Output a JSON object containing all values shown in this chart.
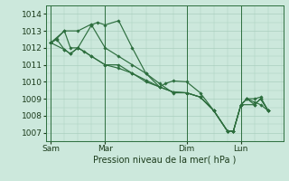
{
  "xlabel": "Pression niveau de la mer( hPa )",
  "background_color": "#cce8dc",
  "grid_color": "#aacfbe",
  "line_color": "#2d6e3e",
  "ylim": [
    1006.5,
    1014.5
  ],
  "yticks": [
    1007,
    1008,
    1009,
    1010,
    1011,
    1012,
    1013,
    1014
  ],
  "day_labels": [
    "Sam",
    "Mar",
    "Dim",
    "Lun"
  ],
  "day_positions": [
    0,
    36,
    90,
    126
  ],
  "xlim": [
    -3,
    154
  ],
  "vline_positions": [
    0,
    36,
    90,
    126
  ],
  "lines": [
    [
      [
        0,
        1012.3
      ],
      [
        4,
        1012.55
      ],
      [
        9,
        1013.0
      ],
      [
        18,
        1013.0
      ],
      [
        27,
        1013.4
      ],
      [
        27,
        1013.35
      ],
      [
        36,
        1012.0
      ],
      [
        45,
        1011.5
      ],
      [
        54,
        1011.0
      ],
      [
        63,
        1010.5
      ],
      [
        72,
        1009.9
      ],
      [
        81,
        1009.35
      ],
      [
        90,
        1009.35
      ],
      [
        99,
        1009.1
      ],
      [
        108,
        1008.3
      ],
      [
        117,
        1007.1
      ],
      [
        121,
        1007.1
      ],
      [
        126,
        1008.65
      ],
      [
        130,
        1009.0
      ],
      [
        135,
        1008.8
      ],
      [
        139,
        1008.65
      ],
      [
        144,
        1008.3
      ]
    ],
    [
      [
        0,
        1012.3
      ],
      [
        4,
        1012.5
      ],
      [
        9,
        1011.9
      ],
      [
        13,
        1011.65
      ],
      [
        18,
        1012.0
      ],
      [
        27,
        1013.35
      ],
      [
        31,
        1013.5
      ],
      [
        36,
        1013.35
      ],
      [
        45,
        1013.6
      ],
      [
        54,
        1012.0
      ],
      [
        63,
        1010.5
      ],
      [
        72,
        1009.7
      ],
      [
        76,
        1009.9
      ],
      [
        81,
        1010.05
      ],
      [
        90,
        1010.0
      ],
      [
        99,
        1009.35
      ],
      [
        108,
        1008.3
      ],
      [
        117,
        1007.1
      ],
      [
        121,
        1007.1
      ],
      [
        126,
        1008.65
      ],
      [
        130,
        1009.0
      ],
      [
        135,
        1009.0
      ],
      [
        139,
        1009.1
      ],
      [
        144,
        1008.3
      ]
    ],
    [
      [
        0,
        1012.3
      ],
      [
        9,
        1011.9
      ],
      [
        13,
        1011.65
      ],
      [
        18,
        1012.0
      ],
      [
        22,
        1011.8
      ],
      [
        27,
        1011.5
      ],
      [
        36,
        1011.0
      ],
      [
        45,
        1010.8
      ],
      [
        54,
        1010.5
      ],
      [
        63,
        1010.1
      ],
      [
        72,
        1009.7
      ],
      [
        81,
        1009.4
      ],
      [
        90,
        1009.35
      ],
      [
        99,
        1009.1
      ],
      [
        108,
        1008.3
      ],
      [
        117,
        1007.1
      ],
      [
        121,
        1007.1
      ],
      [
        126,
        1008.65
      ],
      [
        130,
        1009.0
      ],
      [
        135,
        1008.65
      ],
      [
        139,
        1009.0
      ],
      [
        144,
        1008.3
      ]
    ],
    [
      [
        0,
        1012.3
      ],
      [
        9,
        1013.0
      ],
      [
        13,
        1012.0
      ],
      [
        18,
        1012.0
      ],
      [
        27,
        1011.5
      ],
      [
        36,
        1011.0
      ],
      [
        45,
        1011.0
      ],
      [
        54,
        1010.5
      ],
      [
        63,
        1010.0
      ],
      [
        72,
        1009.7
      ],
      [
        81,
        1009.4
      ],
      [
        90,
        1009.35
      ],
      [
        99,
        1009.1
      ],
      [
        108,
        1008.3
      ],
      [
        117,
        1007.1
      ],
      [
        121,
        1007.1
      ],
      [
        126,
        1008.65
      ],
      [
        135,
        1008.65
      ],
      [
        139,
        1009.0
      ],
      [
        144,
        1008.3
      ]
    ]
  ]
}
